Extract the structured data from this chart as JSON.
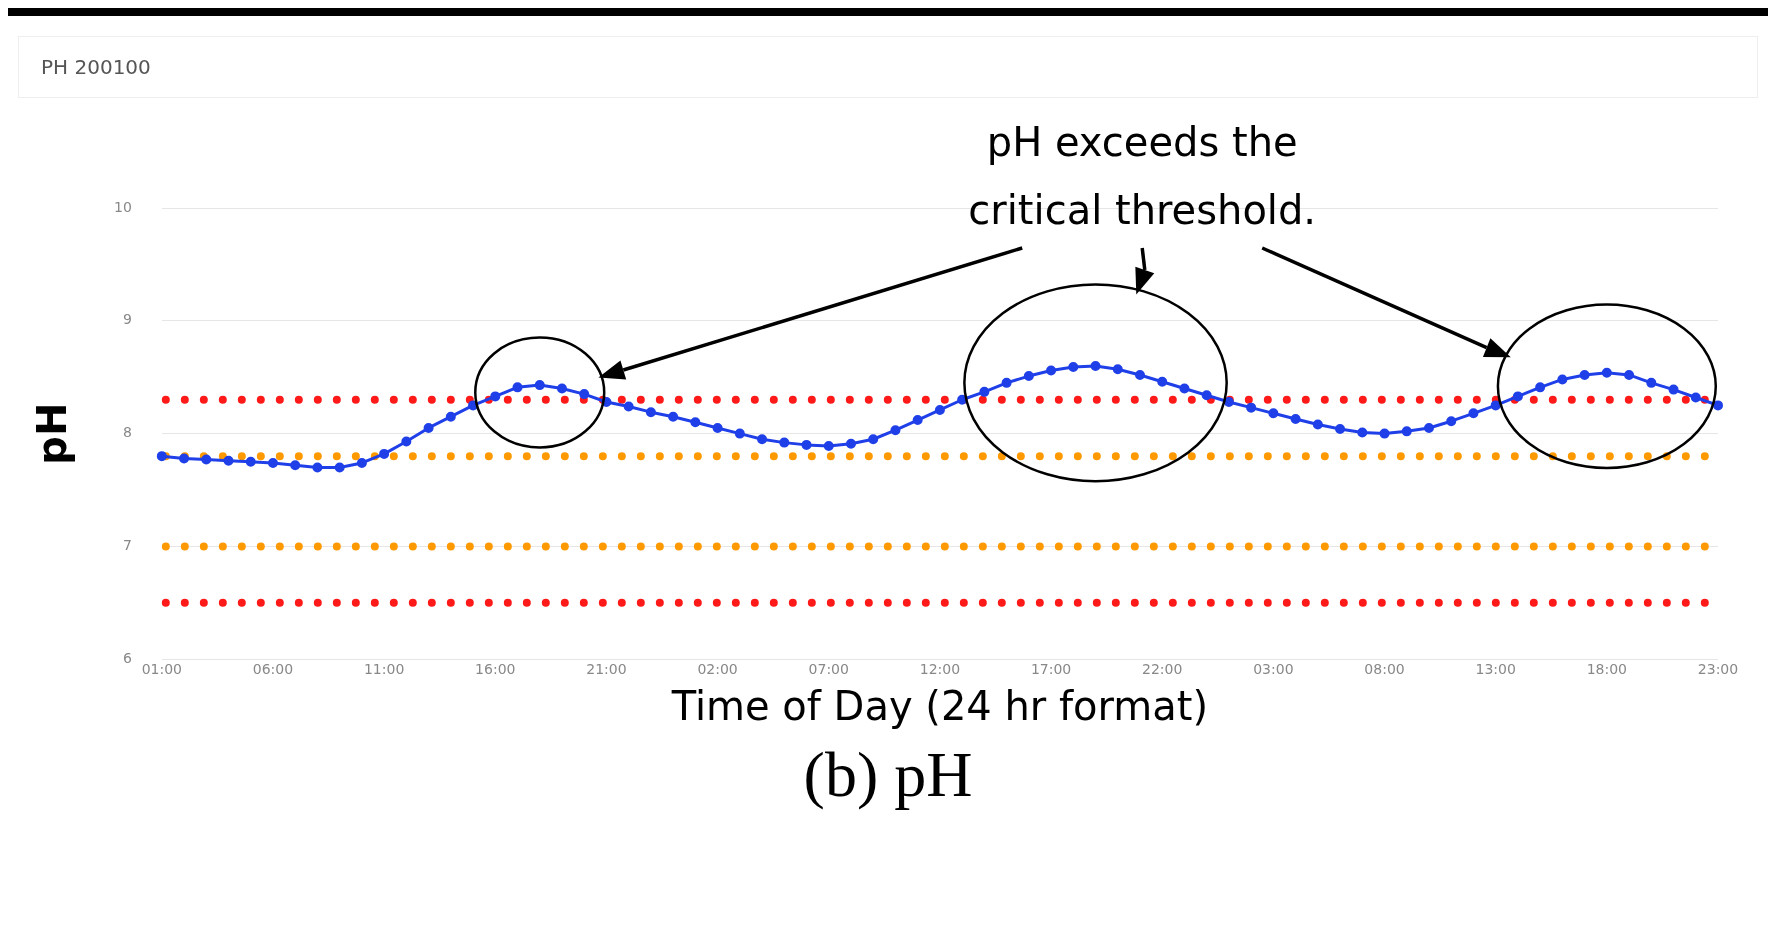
{
  "chart_data": {
    "type": "line",
    "title": "PH 200100",
    "xlabel": "Time of Day (24 hr format)",
    "ylabel": "pH",
    "categories": [
      "01:00",
      null,
      null,
      null,
      null,
      "06:00",
      null,
      null,
      null,
      null,
      "11:00",
      null,
      null,
      null,
      null,
      "16:00",
      null,
      null,
      null,
      null,
      "21:00",
      null,
      null,
      null,
      null,
      "02:00",
      null,
      null,
      null,
      null,
      "07:00",
      null,
      null,
      null,
      null,
      "12:00",
      null,
      null,
      null,
      null,
      "17:00",
      null,
      null,
      null,
      null,
      "22:00",
      null,
      null,
      null,
      null,
      "03:00",
      null,
      null,
      null,
      null,
      "08:00",
      null,
      null,
      null,
      null,
      "13:00",
      null,
      null,
      null,
      null,
      "18:00",
      null,
      null,
      null,
      null,
      "23:00"
    ],
    "series": [
      {
        "color": "#1f3fe8",
        "values": [
          7.8,
          7.78,
          7.77,
          7.76,
          7.75,
          7.74,
          7.72,
          7.7,
          7.7,
          7.74,
          7.82,
          7.93,
          8.05,
          8.15,
          8.25,
          8.33,
          8.41,
          8.43,
          8.4,
          8.35,
          8.28,
          8.24,
          8.19,
          8.15,
          8.1,
          8.05,
          8.0,
          7.95,
          7.92,
          7.9,
          7.89,
          7.91,
          7.95,
          8.03,
          8.12,
          8.21,
          8.3,
          8.37,
          8.45,
          8.51,
          8.56,
          8.59,
          8.6,
          8.57,
          8.52,
          8.46,
          8.4,
          8.34,
          8.28,
          8.23,
          8.18,
          8.13,
          8.08,
          8.04,
          8.01,
          8.0,
          8.02,
          8.05,
          8.11,
          8.18,
          8.25,
          8.33,
          8.41,
          8.48,
          8.52,
          8.54,
          8.52,
          8.45,
          8.39,
          8.32,
          8.25
        ]
      }
    ],
    "marker": "circle",
    "grid": "y",
    "ylim": [
      6,
      10
    ],
    "yticks": [
      6,
      7,
      8,
      9,
      10
    ],
    "ref_lines": [
      {
        "axis": "y",
        "value": 8.3,
        "color": "#ff1a1a",
        "line_style": "dotted"
      },
      {
        "axis": "y",
        "value": 7.8,
        "color": "#ff9900",
        "line_style": "dotted"
      },
      {
        "axis": "y",
        "value": 7.0,
        "color": "#ff9900",
        "line_style": "dotted"
      },
      {
        "axis": "y",
        "value": 6.5,
        "color": "#ff1a1a",
        "line_style": "dotted"
      }
    ],
    "annotations": [
      "pH exceeds the critical threshold.",
      "(b) pH"
    ]
  }
}
